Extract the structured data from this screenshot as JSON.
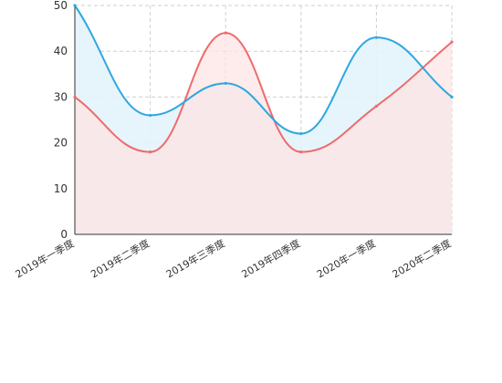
{
  "chart_data": {
    "type": "line",
    "smooth": true,
    "area_fill": true,
    "categories": [
      "2019年一季度",
      "2019年二季度",
      "2019年三季度",
      "2019年四季度",
      "2020年一季度",
      "2020年二季度"
    ],
    "series": [
      {
        "values": [
          30,
          18,
          44,
          18,
          28,
          42
        ],
        "color": "#ee6b6b",
        "fill": "#fde4e4"
      },
      {
        "values": [
          50,
          26,
          33,
          22,
          43,
          30
        ],
        "color": "#2ea7e0",
        "fill": "#e3f3fb"
      }
    ],
    "ylim": [
      0,
      50
    ],
    "yticks": [
      0,
      10,
      20,
      30,
      40,
      50
    ],
    "grid": true,
    "title": "",
    "xlabel": "",
    "ylabel": ""
  }
}
